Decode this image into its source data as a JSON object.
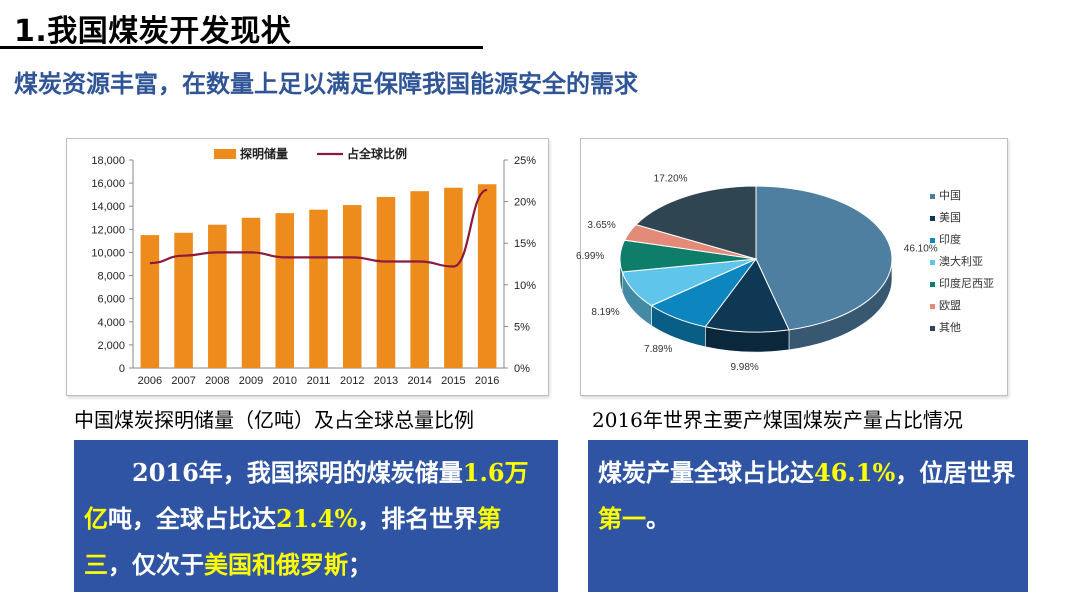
{
  "header": {
    "title": "1.我国煤炭开发现状",
    "subtitle": "煤炭资源丰富，在数量上足以满足保障我国能源安全的需求"
  },
  "colors": {
    "bar": "#ed8b1c",
    "line": "#8b1a3c",
    "accent": "#2f5597",
    "note_bg": "#2e54a3",
    "highlight": "#ffff00"
  },
  "chart_data": [
    {
      "type": "bar",
      "title": "中国煤炭探明储量（亿吨）及占全球总量比例",
      "categories": [
        "2006",
        "2007",
        "2008",
        "2009",
        "2010",
        "2011",
        "2012",
        "2013",
        "2014",
        "2015",
        "2016"
      ],
      "series": [
        {
          "name": "探明储量",
          "axis": "left",
          "values": [
            11500,
            11700,
            12400,
            13000,
            13400,
            13700,
            14100,
            14800,
            15300,
            15600,
            15900
          ]
        },
        {
          "name": "占全球比例",
          "axis": "right",
          "type": "line",
          "values": [
            12.6,
            13.5,
            13.9,
            13.9,
            13.3,
            13.3,
            13.3,
            12.8,
            12.8,
            12.2,
            21.4
          ]
        }
      ],
      "left_ylim": [
        0,
        18000
      ],
      "left_ticks": [
        "0",
        "2,000",
        "4,000",
        "6,000",
        "8,000",
        "10,000",
        "12,000",
        "14,000",
        "16,000",
        "18,000"
      ],
      "right_ylim": [
        0,
        25
      ],
      "right_ticks": [
        "0%",
        "5%",
        "10%",
        "15%",
        "20%",
        "25%"
      ],
      "legend": [
        "探明储量",
        "占全球比例"
      ]
    },
    {
      "type": "pie",
      "title": "2016年世界主要产煤国煤炭产量占比情况",
      "slices": [
        {
          "label": "中国",
          "value": 46.1,
          "text": "46.10%",
          "color": "#4e7ea0"
        },
        {
          "label": "美国",
          "value": 9.98,
          "text": "9.98%",
          "color": "#0f3855"
        },
        {
          "label": "印度",
          "value": 7.89,
          "text": "7.89%",
          "color": "#0d86c0"
        },
        {
          "label": "澳大利亚",
          "value": 8.19,
          "text": "8.19%",
          "color": "#5fc5ea"
        },
        {
          "label": "印度尼西亚",
          "value": 6.99,
          "text": "6.99%",
          "color": "#0e7d6a"
        },
        {
          "label": "欧盟",
          "value": 3.65,
          "text": "3.65%",
          "color": "#e48a78"
        },
        {
          "label": "其他",
          "value": 17.2,
          "text": "17.20%",
          "color": "#2f4552"
        }
      ],
      "legend_position": "right"
    }
  ],
  "captions": {
    "bar": "中国煤炭探明储量（亿吨）及占全球总量比例",
    "pie": "2016年世界主要产煤国煤炭产量占比情况"
  },
  "notes": {
    "left": {
      "p1": "2016年，我国探明的煤炭储量",
      "v1": "1.6万亿",
      "p2": "吨，全球占比达",
      "v2": "21.4%",
      "p3": "，排名世界",
      "v3": "第三",
      "p4": "，仅次于",
      "v4": "美国和俄罗斯",
      "p5": "；"
    },
    "right": {
      "p1": "煤炭产量全球占比达",
      "v1": "46.1%",
      "p2": "，位居世界",
      "v2": "第一",
      "p3": "。"
    }
  }
}
